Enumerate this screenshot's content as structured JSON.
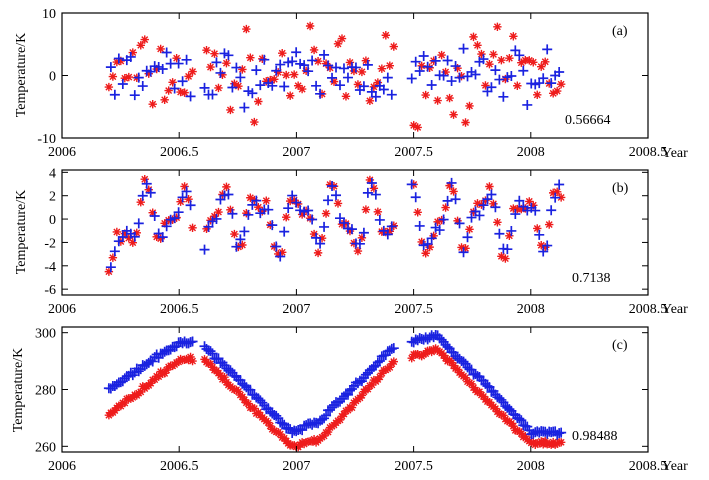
{
  "figure": {
    "colors": {
      "series_a": "#ee1c1c",
      "series_b": "#1a22e0",
      "axis": "#000000"
    },
    "markers": {
      "series_a": "asterisk",
      "series_b": "plus"
    }
  },
  "chart_data": [
    {
      "type": "scatter",
      "panel_label": "(a)",
      "ylabel": "Temperature/K",
      "xlabel": "Year",
      "xlim": [
        2006,
        2008.5
      ],
      "ylim": [
        -10,
        10
      ],
      "xticks": [
        "2006",
        "2006.5",
        "2007",
        "2007.5",
        "2008",
        "2008.5"
      ],
      "yticks": [
        "-10",
        "0",
        "10"
      ],
      "correlation": "0.56664",
      "series": [
        {
          "name": "red",
          "description": "detrended anomaly, spread about ±7 K, data from 2006.2 to 2008.13 with gaps near 2006.57 and 2007.45",
          "amplitude": 4.0,
          "offset": 0
        },
        {
          "name": "blue",
          "description": "detrended anomaly, spread about ±5 K",
          "amplitude": 2.6,
          "offset": 0
        }
      ]
    },
    {
      "type": "scatter",
      "panel_label": "(b)",
      "ylabel": "Temperature/K",
      "xlabel": "Year",
      "xlim": [
        2006,
        2008.5
      ],
      "ylim": [
        -6.5,
        4.2
      ],
      "xticks": [
        "2006",
        "2006.5",
        "2007",
        "2007.5",
        "2008",
        "2008.5"
      ],
      "yticks": [
        "-6",
        "-4",
        "-2",
        "0",
        "2",
        "4"
      ],
      "correlation": "0.7138",
      "series": [
        {
          "name": "red",
          "description": "smoothed anomaly oscillating between about -5 and +3.5 K"
        },
        {
          "name": "blue",
          "description": "smoothed anomaly oscillating between about -5 and +3 K"
        }
      ]
    },
    {
      "type": "scatter",
      "panel_label": "(c)",
      "ylabel": "Temperature/K",
      "xlabel": "Year",
      "xlim": [
        2006,
        2008.5
      ],
      "ylim": [
        258,
        302
      ],
      "xticks": [
        "2006",
        "2006.5",
        "2007",
        "2007.5",
        "2008",
        "2008.5"
      ],
      "yticks": [
        "260",
        "280",
        "300"
      ],
      "correlation": "0.98488",
      "series": [
        {
          "name": "red",
          "description": "seasonal temperature cycle",
          "points": [
            [
              2006.2,
              271
            ],
            [
              2006.5,
              290.5
            ],
            [
              2006.6,
              291
            ],
            [
              2006.98,
              260
            ],
            [
              2007.1,
              262.5
            ],
            [
              2007.42,
              290
            ],
            [
              2007.5,
              291.5
            ],
            [
              2007.6,
              294
            ],
            [
              2007.9,
              269
            ],
            [
              2008.0,
              261.5
            ],
            [
              2008.13,
              261
            ]
          ]
        },
        {
          "name": "blue",
          "description": "seasonal temperature cycle",
          "points": [
            [
              2006.2,
              280
            ],
            [
              2006.5,
              296.5
            ],
            [
              2006.6,
              296
            ],
            [
              2006.98,
              265
            ],
            [
              2007.1,
              269
            ],
            [
              2007.42,
              295.5
            ],
            [
              2007.5,
              297
            ],
            [
              2007.6,
              299
            ],
            [
              2007.9,
              274
            ],
            [
              2008.0,
              265
            ],
            [
              2008.13,
              265
            ]
          ]
        }
      ]
    }
  ]
}
